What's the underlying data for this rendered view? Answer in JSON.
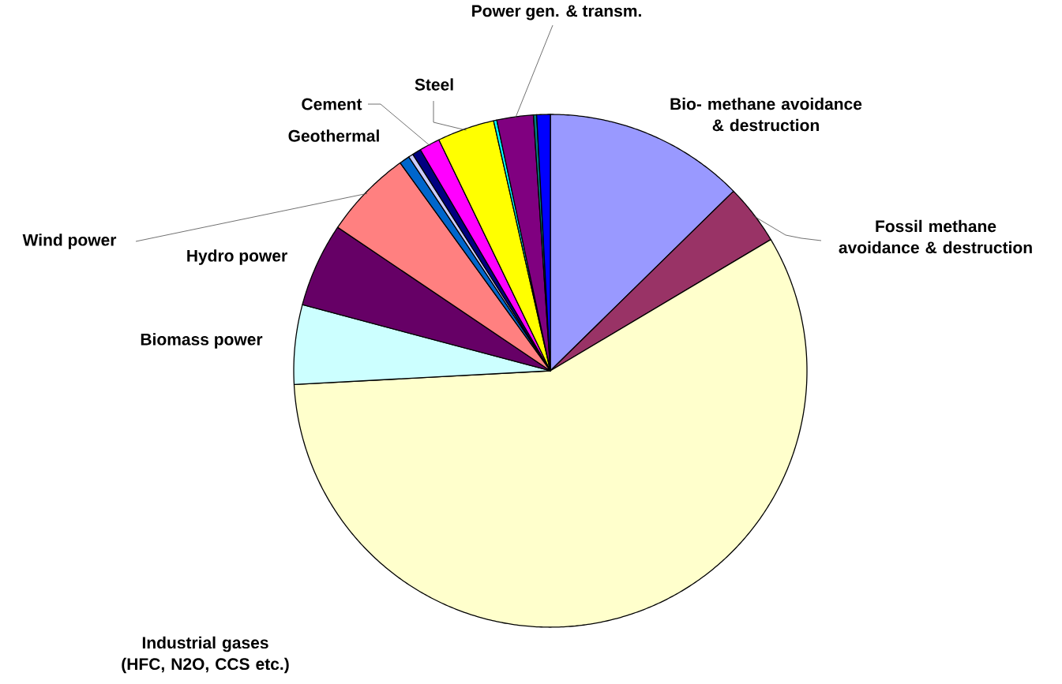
{
  "chart_data": {
    "type": "pie",
    "categories": [
      "Bio- methane avoidance & destruction",
      "Fossil methane avoidance & destruction",
      "Industrial gases (HFC, N2O, CCS etc.)",
      "Biomass power",
      "Hydro power",
      "Wind power",
      "Geothermal",
      null,
      null,
      "Cement",
      "Steel",
      null,
      "Power gen. & transm.",
      null,
      null
    ],
    "values": [
      12.65,
      3.8,
      57.7,
      5.0,
      5.3,
      5.6,
      0.65,
      0.3,
      0.55,
      1.3,
      3.6,
      0.2,
      2.3,
      0.2,
      0.85
    ],
    "colors": [
      "#9999ff",
      "#993366",
      "#ffffcc",
      "#ccffff",
      "#660066",
      "#ff8080",
      "#0066cc",
      "#ccccff",
      "#000080",
      "#ff00ff",
      "#ffff00",
      "#00ffff",
      "#800080",
      "#008080",
      "#0000ff"
    ]
  }
}
